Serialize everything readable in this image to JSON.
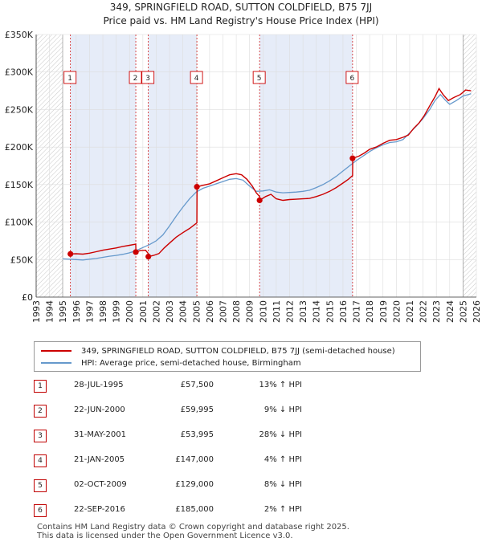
{
  "title_line1": "349, SPRINGFIELD ROAD, SUTTON COLDFIELD, B75 7JJ",
  "title_line2": "Price paid vs. HM Land Registry's House Price Index (HPI)",
  "chart_data": {
    "type": "line",
    "xlabel": "",
    "ylabel": "",
    "xlim": [
      1993,
      2026
    ],
    "ylim": [
      0,
      350000
    ],
    "x_ticks": [
      1993,
      1994,
      1995,
      1996,
      1997,
      1998,
      1999,
      2000,
      2001,
      2002,
      2003,
      2004,
      2005,
      2006,
      2007,
      2008,
      2009,
      2010,
      2011,
      2012,
      2013,
      2014,
      2015,
      2016,
      2017,
      2018,
      2019,
      2020,
      2021,
      2022,
      2023,
      2024,
      2025,
      2026
    ],
    "y_ticks": [
      {
        "value": 0,
        "label": "£0"
      },
      {
        "value": 50000,
        "label": "£50K"
      },
      {
        "value": 100000,
        "label": "£100K"
      },
      {
        "value": 150000,
        "label": "£150K"
      },
      {
        "value": 200000,
        "label": "£200K"
      },
      {
        "value": 250000,
        "label": "£250K"
      },
      {
        "value": 300000,
        "label": "£300K"
      },
      {
        "value": 350000,
        "label": "£350K"
      }
    ],
    "hatched_ranges": [
      [
        1993,
        1995.0
      ],
      [
        2025.0,
        2026
      ]
    ],
    "series": [
      {
        "name": "349, SPRINGFIELD ROAD, SUTTON COLDFIELD, B75 7JJ (semi-detached house)",
        "color": "#cc0000",
        "points": [
          [
            1995.57,
            57500
          ],
          [
            1996.0,
            57800
          ],
          [
            1996.5,
            57300
          ],
          [
            1997.0,
            58500
          ],
          [
            1997.5,
            60500
          ],
          [
            1998.0,
            62500
          ],
          [
            1998.5,
            64000
          ],
          [
            1999.0,
            65500
          ],
          [
            1999.5,
            67500
          ],
          [
            2000.0,
            69000
          ],
          [
            2000.47,
            70500
          ],
          [
            2000.48,
            59995
          ],
          [
            2000.8,
            62000
          ],
          [
            2001.2,
            62500
          ],
          [
            2001.41,
            57800
          ],
          [
            2001.42,
            53995
          ],
          [
            2001.8,
            55500
          ],
          [
            2002.2,
            58000
          ],
          [
            2002.6,
            65500
          ],
          [
            2003.0,
            72000
          ],
          [
            2003.5,
            80000
          ],
          [
            2004.0,
            86000
          ],
          [
            2004.5,
            91500
          ],
          [
            2004.9,
            97000
          ],
          [
            2005.05,
            99000
          ],
          [
            2005.06,
            147000
          ],
          [
            2005.5,
            149000
          ],
          [
            2006.0,
            151000
          ],
          [
            2006.5,
            155000
          ],
          [
            2007.0,
            159000
          ],
          [
            2007.5,
            163000
          ],
          [
            2008.0,
            164500
          ],
          [
            2008.4,
            163000
          ],
          [
            2008.8,
            157000
          ],
          [
            2009.2,
            148000
          ],
          [
            2009.5,
            139000
          ],
          [
            2009.75,
            134000
          ],
          [
            2009.76,
            129000
          ],
          [
            2010.2,
            134000
          ],
          [
            2010.6,
            137000
          ],
          [
            2011.0,
            131000
          ],
          [
            2011.5,
            129000
          ],
          [
            2012.0,
            130000
          ],
          [
            2012.5,
            130500
          ],
          [
            2013.0,
            131000
          ],
          [
            2013.5,
            131500
          ],
          [
            2014.0,
            134000
          ],
          [
            2014.5,
            137000
          ],
          [
            2015.0,
            141000
          ],
          [
            2015.5,
            146000
          ],
          [
            2016.0,
            152000
          ],
          [
            2016.4,
            157000
          ],
          [
            2016.72,
            162000
          ],
          [
            2016.73,
            185000
          ],
          [
            2017.2,
            188000
          ],
          [
            2017.6,
            192000
          ],
          [
            2018.0,
            197000
          ],
          [
            2018.5,
            200000
          ],
          [
            2019.0,
            205000
          ],
          [
            2019.5,
            209000
          ],
          [
            2020.0,
            210000
          ],
          [
            2020.5,
            213000
          ],
          [
            2020.9,
            216000
          ],
          [
            2021.3,
            225000
          ],
          [
            2021.7,
            232000
          ],
          [
            2022.1,
            242000
          ],
          [
            2022.5,
            255000
          ],
          [
            2022.9,
            267000
          ],
          [
            2023.2,
            278000
          ],
          [
            2023.5,
            270000
          ],
          [
            2023.9,
            262000
          ],
          [
            2024.3,
            266000
          ],
          [
            2024.8,
            270000
          ],
          [
            2025.2,
            276000
          ],
          [
            2025.6,
            275000
          ]
        ]
      },
      {
        "name": "HPI: Average price, semi-detached house, Birmingham",
        "color": "#6699cc",
        "points": [
          [
            1995.0,
            51000
          ],
          [
            1995.5,
            50500
          ],
          [
            1996.0,
            50000
          ],
          [
            1996.5,
            49500
          ],
          [
            1997.0,
            50500
          ],
          [
            1997.5,
            51500
          ],
          [
            1998.0,
            53000
          ],
          [
            1998.5,
            54500
          ],
          [
            1999.0,
            55500
          ],
          [
            1999.5,
            57000
          ],
          [
            2000.0,
            59000
          ],
          [
            2000.5,
            62000
          ],
          [
            2001.0,
            66000
          ],
          [
            2001.5,
            70000
          ],
          [
            2002.0,
            75000
          ],
          [
            2002.5,
            83000
          ],
          [
            2003.0,
            95000
          ],
          [
            2003.5,
            108000
          ],
          [
            2004.0,
            120000
          ],
          [
            2004.5,
            131000
          ],
          [
            2005.0,
            140000
          ],
          [
            2005.5,
            145000
          ],
          [
            2006.0,
            148000
          ],
          [
            2006.5,
            151000
          ],
          [
            2007.0,
            154000
          ],
          [
            2007.5,
            157000
          ],
          [
            2008.0,
            158000
          ],
          [
            2008.5,
            156000
          ],
          [
            2009.0,
            148000
          ],
          [
            2009.5,
            141000
          ],
          [
            2010.0,
            141500
          ],
          [
            2010.5,
            143000
          ],
          [
            2011.0,
            140000
          ],
          [
            2011.5,
            139000
          ],
          [
            2012.0,
            139500
          ],
          [
            2012.5,
            140000
          ],
          [
            2013.0,
            141000
          ],
          [
            2013.5,
            142500
          ],
          [
            2014.0,
            146000
          ],
          [
            2014.5,
            150000
          ],
          [
            2015.0,
            155000
          ],
          [
            2015.5,
            161000
          ],
          [
            2016.0,
            168000
          ],
          [
            2016.5,
            175000
          ],
          [
            2017.0,
            182000
          ],
          [
            2017.5,
            188000
          ],
          [
            2018.0,
            194000
          ],
          [
            2018.5,
            199000
          ],
          [
            2019.0,
            203000
          ],
          [
            2019.5,
            206000
          ],
          [
            2020.0,
            207000
          ],
          [
            2020.5,
            210000
          ],
          [
            2021.0,
            219000
          ],
          [
            2021.5,
            228000
          ],
          [
            2022.0,
            238000
          ],
          [
            2022.5,
            250000
          ],
          [
            2022.9,
            262000
          ],
          [
            2023.3,
            270000
          ],
          [
            2023.7,
            262000
          ],
          [
            2024.0,
            257000
          ],
          [
            2024.5,
            262000
          ],
          [
            2025.0,
            268000
          ],
          [
            2025.6,
            271000
          ]
        ]
      }
    ],
    "sales": [
      {
        "id": "1",
        "x": 1995.57,
        "price": 57500
      },
      {
        "id": "2",
        "x": 2000.47,
        "price": 59995
      },
      {
        "id": "3",
        "x": 2001.41,
        "price": 53995
      },
      {
        "id": "4",
        "x": 2005.05,
        "price": 147000
      },
      {
        "id": "5",
        "x": 2009.75,
        "price": 129000
      },
      {
        "id": "6",
        "x": 2016.72,
        "price": 185000
      }
    ]
  },
  "legend": {
    "property_label": "349, SPRINGFIELD ROAD, SUTTON COLDFIELD, B75 7JJ (semi-detached house)",
    "hpi_label": "HPI: Average price, semi-detached house, Birmingham",
    "property_color": "#cc0000",
    "hpi_color": "#6699cc"
  },
  "transactions": [
    {
      "num": "1",
      "date": "28-JUL-1995",
      "price": "£57,500",
      "delta": "13% ↑ HPI"
    },
    {
      "num": "2",
      "date": "22-JUN-2000",
      "price": "£59,995",
      "delta": "9% ↓ HPI"
    },
    {
      "num": "3",
      "date": "31-MAY-2001",
      "price": "£53,995",
      "delta": "28% ↓ HPI"
    },
    {
      "num": "4",
      "date": "21-JAN-2005",
      "price": "£147,000",
      "delta": "4% ↑ HPI"
    },
    {
      "num": "5",
      "date": "02-OCT-2009",
      "price": "£129,000",
      "delta": "8% ↓ HPI"
    },
    {
      "num": "6",
      "date": "22-SEP-2016",
      "price": "£185,000",
      "delta": "2% ↑ HPI"
    }
  ],
  "footer": {
    "line1": "Contains HM Land Registry data © Crown copyright and database right 2025.",
    "line2": "This data is licensed under the Open Government Licence v3.0."
  }
}
